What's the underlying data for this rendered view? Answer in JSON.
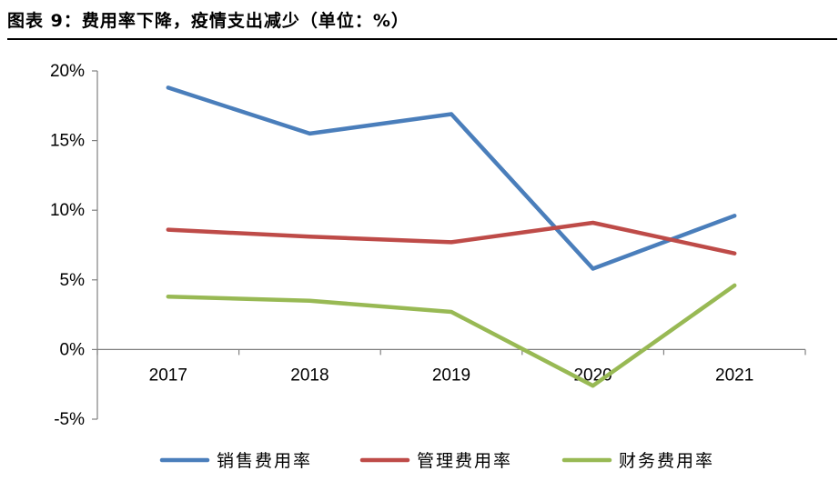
{
  "title": "图表 9：费用率下降，疫情支出减少（单位：%）",
  "chart_data": {
    "type": "line",
    "categories": [
      "2017",
      "2018",
      "2019",
      "2020",
      "2021"
    ],
    "y_ticks": [
      "20%",
      "15%",
      "10%",
      "5%",
      "0%",
      "-5%"
    ],
    "ylim": [
      -5,
      20
    ],
    "grid": false,
    "legend_position": "bottom",
    "series": [
      {
        "name": "销售费用率",
        "color": "#4a7ebb",
        "values": [
          18.8,
          15.5,
          16.9,
          5.8,
          9.6
        ]
      },
      {
        "name": "管理费用率",
        "color": "#be4b48",
        "values": [
          8.6,
          8.1,
          7.7,
          9.1,
          6.9
        ]
      },
      {
        "name": "财务费用率",
        "color": "#98b954",
        "values": [
          3.8,
          3.5,
          2.7,
          -2.6,
          4.6
        ]
      }
    ]
  }
}
